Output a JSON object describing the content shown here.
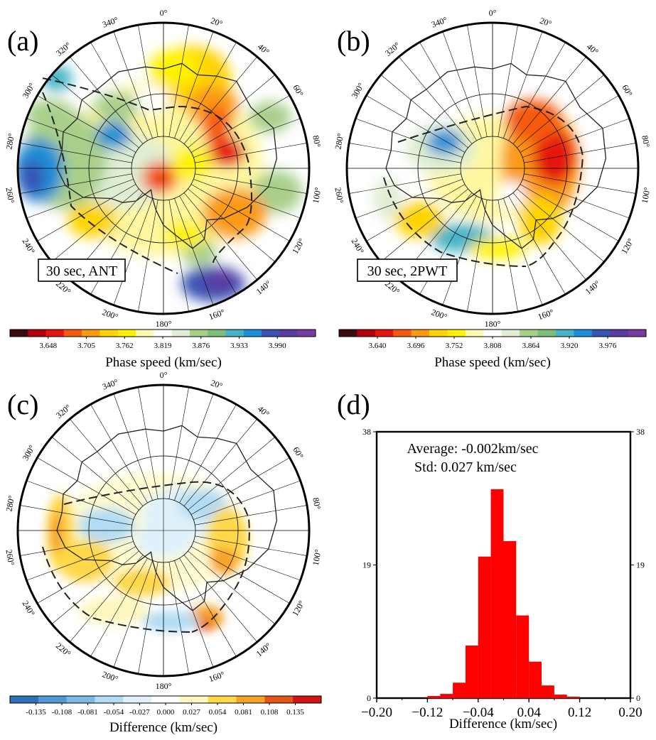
{
  "panels": {
    "a": {
      "label": "(a)",
      "note": "30 sec, ANT"
    },
    "b": {
      "label": "(b)",
      "note": "30 sec, 2PWT"
    },
    "c": {
      "label": "(c)"
    },
    "d": {
      "label": "(d)"
    }
  },
  "longitude_labels": [
    "0°",
    "20°",
    "40°",
    "60°",
    "80°",
    "100°",
    "120°",
    "140°",
    "160°",
    "180°",
    "200°",
    "220°",
    "240°",
    "260°",
    "280°",
    "300°",
    "320°",
    "340°"
  ],
  "colorbars": {
    "a": {
      "title": "Phase speed (km/sec)",
      "ticks": [
        "3.648",
        "3.705",
        "3.762",
        "3.819",
        "3.876",
        "3.933",
        "3.990"
      ]
    },
    "b": {
      "title": "Phase speed (km/sec)",
      "ticks": [
        "3.640",
        "3.696",
        "3.752",
        "3.808",
        "3.864",
        "3.920",
        "3.976"
      ]
    },
    "c": {
      "title": "Difference (km/sec)",
      "ticks": [
        "-0.135",
        "-0.108",
        "-0.081",
        "-0.054",
        "-0.027",
        "0.000",
        "0.027",
        "0.054",
        "0.081",
        "0.108",
        "0.135"
      ]
    }
  },
  "colors": {
    "speed_scale": [
      "#3a0c10",
      "#b30010",
      "#e4160f",
      "#f55a10",
      "#fb9a12",
      "#ffd400",
      "#fff200",
      "#fffbb0",
      "#ffffff",
      "#dfeed3",
      "#a8cf8a",
      "#7cbf7a",
      "#44b4c6",
      "#1d8fd8",
      "#3953b3",
      "#5b3aa2",
      "#7b3a9e"
    ],
    "diff_scale": [
      "#2e6fb6",
      "#4f9ad6",
      "#7db9e6",
      "#b2dcf3",
      "#dff1fa",
      "#ffffff",
      "#fff7c0",
      "#ffd84a",
      "#f7a326",
      "#e5551a",
      "#d11313"
    ],
    "histogram_bar": "#ff0000"
  },
  "chart_data": [
    {
      "type": "heatmap",
      "panel": "a",
      "description_source": "polar stereographic map of Antarctica",
      "colorbar_title": "Phase speed (km/sec)",
      "colorbar_range": [
        3.62,
        4.05
      ]
    },
    {
      "type": "heatmap",
      "panel": "b",
      "colorbar_title": "Phase speed (km/sec)",
      "colorbar_range": [
        3.612,
        4.034
      ]
    },
    {
      "type": "heatmap",
      "panel": "c",
      "colorbar_title": "Difference (km/sec)",
      "colorbar_range": [
        -0.162,
        0.162
      ]
    },
    {
      "type": "bar",
      "panel": "d",
      "annotation_average": "Average: -0.002km/sec",
      "annotation_std": "Std: 0.027 km/sec",
      "xlabel": "Difference (km/sec)",
      "x_ticks": [
        "−0.20",
        "−0.12",
        "−0.04",
        "0.04",
        "0.12",
        "0.20"
      ],
      "y_ticks": [
        "0",
        "19",
        "38"
      ],
      "xlim": [
        -0.2,
        0.2
      ],
      "ylim": [
        0,
        38
      ],
      "bin_width": 0.02,
      "bin_left_edges": [
        -0.12,
        -0.1,
        -0.08,
        -0.06,
        -0.04,
        -0.02,
        0.0,
        0.02,
        0.04,
        0.06,
        0.08,
        0.1
      ],
      "values": [
        0.3,
        0.6,
        2.2,
        7.5,
        20.2,
        29.8,
        22.4,
        11.8,
        5.2,
        1.8,
        0.5,
        0.2
      ]
    }
  ]
}
